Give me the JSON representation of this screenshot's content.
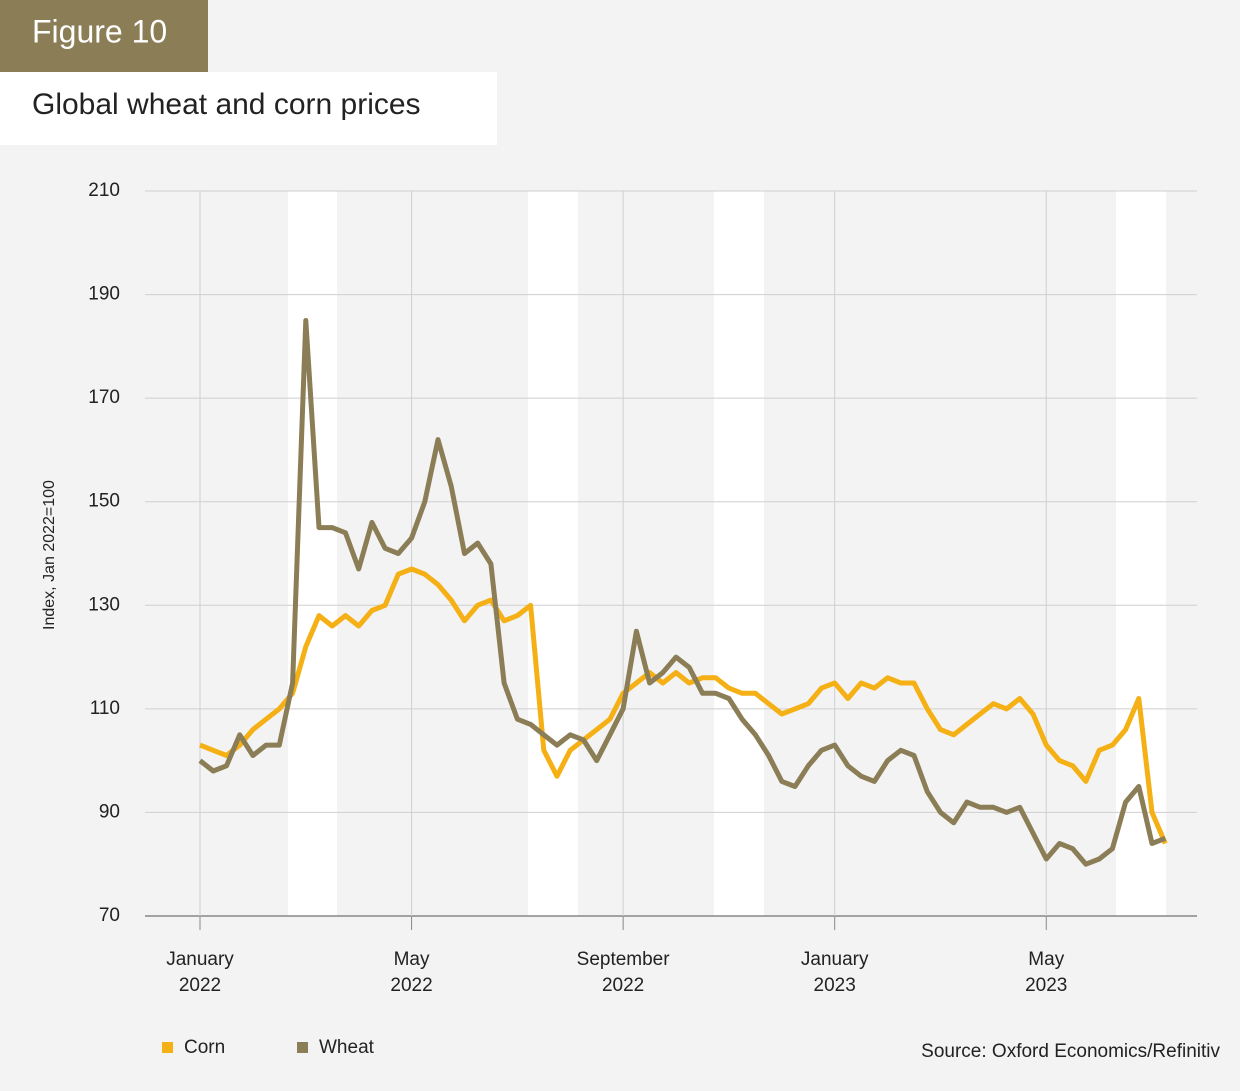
{
  "chart_data": {
    "type": "line",
    "figure_label": "Figure 10",
    "title": "Global wheat and corn prices",
    "y_label": "Index, Jan 2022=100",
    "source": "Source: Oxford Economics/Refinitiv",
    "x": [
      0,
      0.25,
      0.5,
      0.75,
      1,
      1.25,
      1.5,
      1.75,
      2,
      2.25,
      2.5,
      2.75,
      3,
      3.25,
      3.5,
      3.75,
      4,
      4.25,
      4.5,
      4.75,
      5,
      5.25,
      5.5,
      5.75,
      6,
      6.25,
      6.5,
      6.75,
      7,
      7.25,
      7.5,
      7.75,
      8,
      8.25,
      8.5,
      8.75,
      9,
      9.25,
      9.5,
      9.75,
      10,
      10.25,
      10.5,
      10.75,
      11,
      11.25,
      11.5,
      11.75,
      12,
      12.25,
      12.5,
      12.75,
      13,
      13.25,
      13.5,
      13.75,
      14,
      14.25,
      14.5,
      14.75,
      15,
      15.25,
      15.5,
      15.75,
      16,
      16.25,
      16.5,
      16.75,
      17,
      17.25,
      17.5,
      17.75,
      18,
      18.25
    ],
    "series": [
      {
        "name": "Corn",
        "color": "#f4b014",
        "values": [
          103,
          102,
          101,
          103,
          106,
          108,
          110,
          113,
          122,
          128,
          126,
          128,
          126,
          129,
          130,
          136,
          137,
          136,
          134,
          131,
          127,
          130,
          131,
          127,
          128,
          130,
          102,
          97,
          102,
          104,
          106,
          108,
          113,
          115,
          117,
          115,
          117,
          115,
          116,
          116,
          114,
          113,
          113,
          111,
          109,
          110,
          111,
          114,
          115,
          112,
          115,
          114,
          116,
          115,
          115,
          110,
          106,
          105,
          107,
          109,
          111,
          110,
          112,
          109,
          103,
          100,
          99,
          96,
          102,
          103,
          106,
          112,
          90,
          84
        ]
      },
      {
        "name": "Wheat",
        "color": "#8b7d55",
        "values": [
          100,
          98,
          99,
          105,
          101,
          103,
          103,
          115,
          185,
          145,
          145,
          144,
          137,
          146,
          141,
          140,
          143,
          150,
          162,
          153,
          140,
          142,
          138,
          115,
          108,
          107,
          105,
          103,
          105,
          104,
          100,
          105,
          110,
          125,
          115,
          117,
          120,
          118,
          113,
          113,
          112,
          108,
          105,
          101,
          96,
          95,
          99,
          102,
          103,
          99,
          97,
          96,
          100,
          102,
          101,
          94,
          90,
          88,
          92,
          91,
          91,
          90,
          91,
          86,
          81,
          84,
          83,
          80,
          81,
          83,
          92,
          95,
          84,
          85
        ]
      }
    ],
    "xlim": [
      -1.04,
      18.85
    ],
    "xticks": [
      {
        "value": 0,
        "label": "January\n2022"
      },
      {
        "value": 4,
        "label": "May\n2022"
      },
      {
        "value": 8,
        "label": "September\n2022"
      },
      {
        "value": 12,
        "label": "January\n2023"
      },
      {
        "value": 16,
        "label": "May\n2023"
      }
    ],
    "ylim": [
      70,
      210
    ],
    "yticks": [
      70,
      90,
      110,
      130,
      150,
      170,
      190,
      210
    ],
    "grid": true
  }
}
